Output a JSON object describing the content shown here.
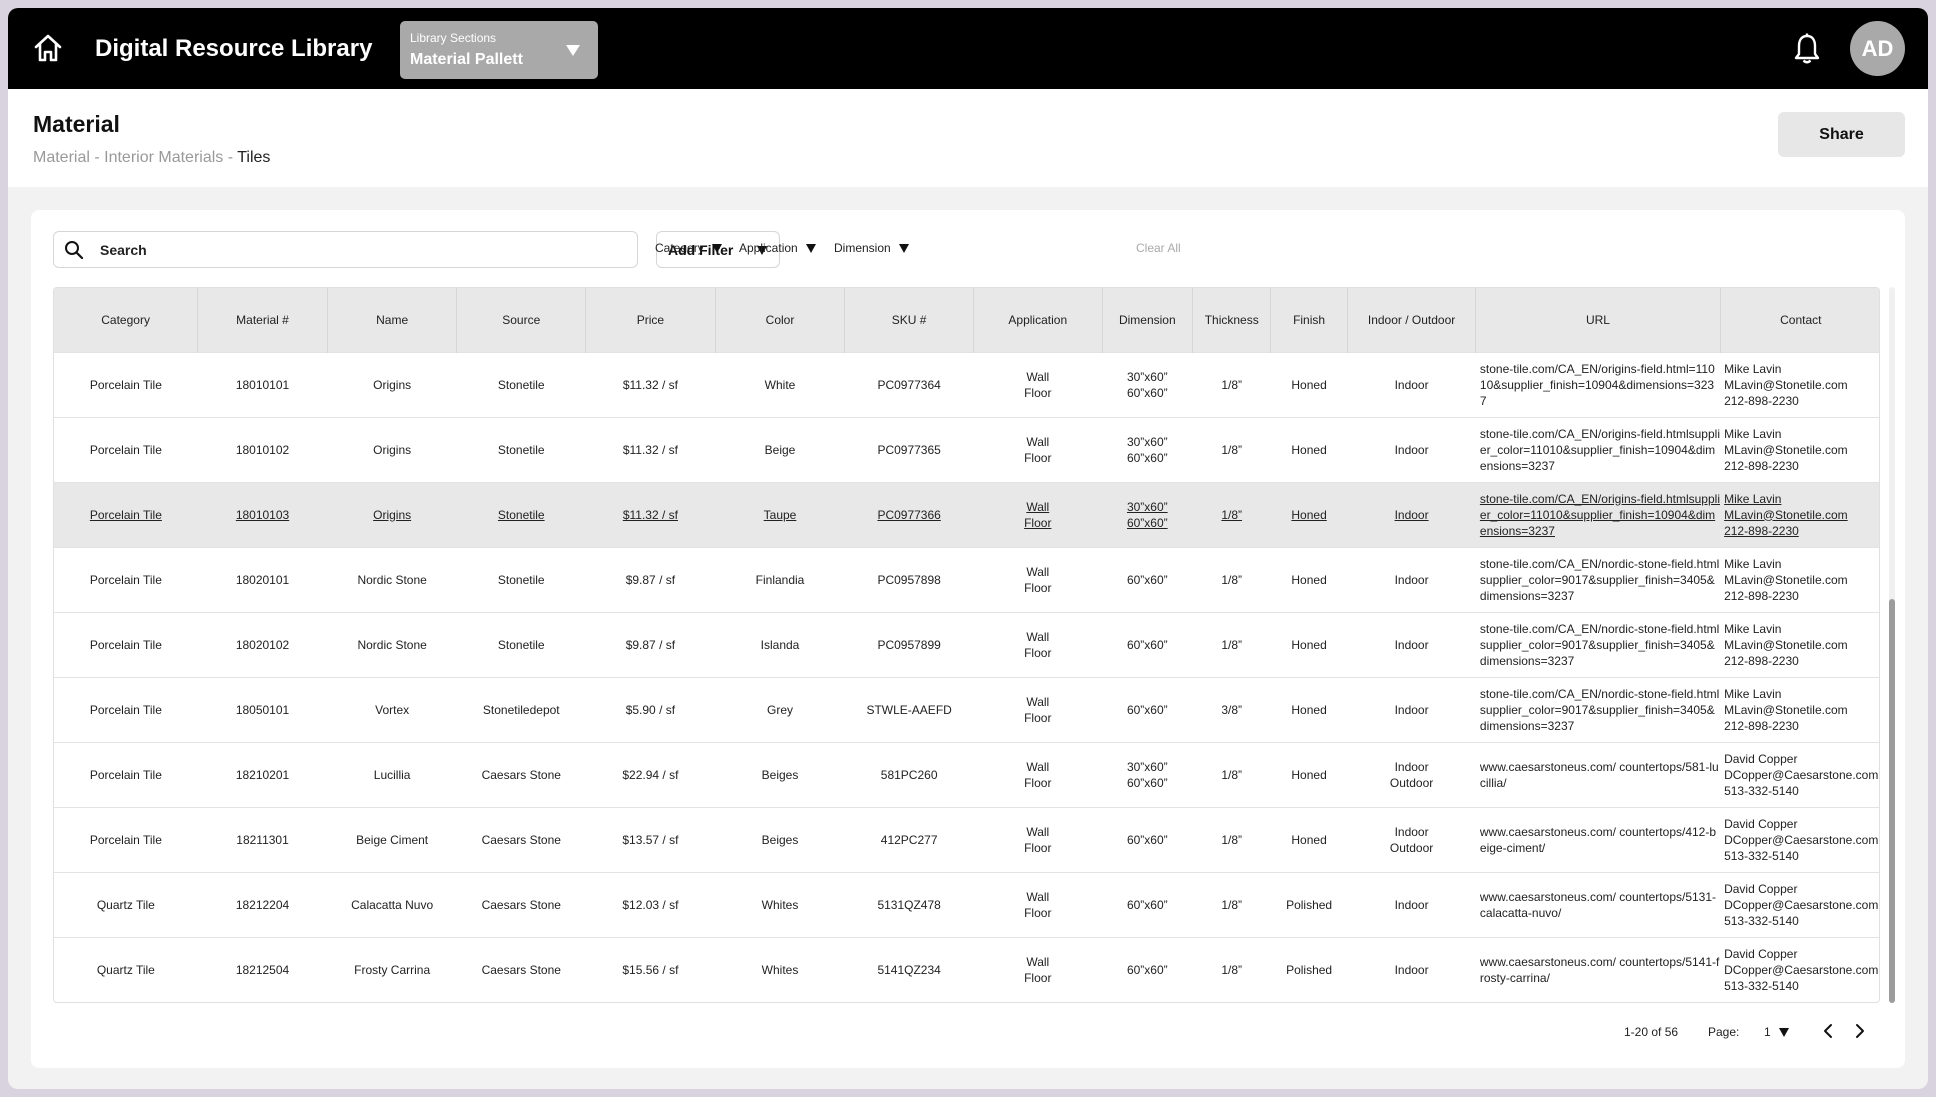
{
  "header": {
    "app_title": "Digital Resource Library",
    "section_label": "Library Sections",
    "section_value": "Material Pallett",
    "avatar_initials": "AD"
  },
  "page": {
    "title": "Material",
    "breadcrumb": [
      "Material",
      "Interior Materials",
      "Tiles"
    ],
    "breadcrumb_sep": " - ",
    "share_label": "Share"
  },
  "toolbar": {
    "search_placeholder": "Search",
    "add_filter_label": "Add Filter",
    "filters": [
      "Category",
      "Application",
      "Dimension"
    ],
    "clear_all_label": "Clear All"
  },
  "table": {
    "columns": [
      "Category",
      "Material #",
      "Name",
      "Source",
      "Price",
      "Color",
      "SKU #",
      "Application",
      "Dimension",
      "Thickness",
      "Finish",
      "Indoor / Outdoor",
      "URL",
      "Contact"
    ],
    "rows": [
      {
        "category": "Porcelain Tile",
        "material": "18010101",
        "name": "Origins",
        "source": "Stonetile",
        "price": "$11.32 / sf",
        "color": "White",
        "sku": "PC0977364",
        "application": [
          "Wall",
          "Floor"
        ],
        "dimension": [
          "30”x60”",
          "60”x60”"
        ],
        "thickness": "1/8”",
        "finish": "Honed",
        "inout": [
          "Indoor"
        ],
        "url": "stone-tile.com/CA_EN/origins-field.html=11010&supplier_finish=10904&dimensions=3237",
        "contact": [
          "Mike Lavin",
          "MLavin@Stonetile.com",
          "212-898-2230"
        ]
      },
      {
        "category": "Porcelain Tile",
        "material": "18010102",
        "name": "Origins",
        "source": "Stonetile",
        "price": "$11.32 / sf",
        "color": "Beige",
        "sku": "PC0977365",
        "application": [
          "Wall",
          "Floor"
        ],
        "dimension": [
          "30”x60”",
          "60”x60”"
        ],
        "thickness": "1/8”",
        "finish": "Honed",
        "inout": [
          "Indoor"
        ],
        "url": "stone-tile.com/CA_EN/origins-field.htmlsupplier_color=11010&supplier_finish=10904&dimensions=3237",
        "contact": [
          "Mike Lavin",
          "MLavin@Stonetile.com",
          "212-898-2230"
        ]
      },
      {
        "category": "Porcelain Tile",
        "material": "18010103",
        "name": "Origins",
        "source": "Stonetile",
        "price": "$11.32 / sf",
        "color": "Taupe",
        "sku": "PC0977366",
        "application": [
          "Wall",
          "Floor"
        ],
        "dimension": [
          "30”x60”",
          "60”x60”"
        ],
        "thickness": "1/8”",
        "finish": "Honed",
        "inout": [
          "Indoor"
        ],
        "url": "stone-tile.com/CA_EN/origins-field.htmlsupplier_color=11010&supplier_finish=10904&dimensions=3237",
        "contact": [
          "Mike Lavin",
          "MLavin@Stonetile.com",
          "212-898-2230"
        ]
      },
      {
        "category": "Porcelain Tile",
        "material": "18020101",
        "name": "Nordic Stone",
        "source": "Stonetile",
        "price": "$9.87 / sf",
        "color": "Finlandia",
        "sku": "PC0957898",
        "application": [
          "Wall",
          "Floor"
        ],
        "dimension": [
          "60”x60”"
        ],
        "thickness": "1/8”",
        "finish": "Honed",
        "inout": [
          "Indoor"
        ],
        "url": "stone-tile.com/CA_EN/nordic-stone-field.htmlsupplier_color=9017&supplier_finish=3405&dimensions=3237",
        "contact": [
          "Mike Lavin",
          "MLavin@Stonetile.com",
          "212-898-2230"
        ]
      },
      {
        "category": "Porcelain Tile",
        "material": "18020102",
        "name": "Nordic Stone",
        "source": "Stonetile",
        "price": "$9.87 / sf",
        "color": "Islanda",
        "sku": "PC0957899",
        "application": [
          "Wall",
          "Floor"
        ],
        "dimension": [
          "60”x60”"
        ],
        "thickness": "1/8”",
        "finish": "Honed",
        "inout": [
          "Indoor"
        ],
        "url": "stone-tile.com/CA_EN/nordic-stone-field.htmlsupplier_color=9017&supplier_finish=3405&dimensions=3237",
        "contact": [
          "Mike Lavin",
          "MLavin@Stonetile.com",
          "212-898-2230"
        ]
      },
      {
        "category": "Porcelain Tile",
        "material": "18050101",
        "name": "Vortex",
        "source": "Stonetiledepot",
        "price": "$5.90 / sf",
        "color": "Grey",
        "sku": "STWLE-AAEFD",
        "application": [
          "Wall",
          "Floor"
        ],
        "dimension": [
          "60”x60”"
        ],
        "thickness": "3/8”",
        "finish": "Honed",
        "inout": [
          "Indoor"
        ],
        "url": "stone-tile.com/CA_EN/nordic-stone-field.htmlsupplier_color=9017&supplier_finish=3405&dimensions=3237",
        "contact": [
          "Mike Lavin",
          "MLavin@Stonetile.com",
          "212-898-2230"
        ]
      },
      {
        "category": "Porcelain Tile",
        "material": "18210201",
        "name": "Lucillia",
        "source": "Caesars Stone",
        "price": "$22.94 / sf",
        "color": "Beiges",
        "sku": "581PC260",
        "application": [
          "Wall",
          "Floor"
        ],
        "dimension": [
          "30”x60”",
          "60”x60”"
        ],
        "thickness": "1/8”",
        "finish": "Honed",
        "inout": [
          "Indoor",
          "Outdoor"
        ],
        "url": "www.caesarstoneus.com/ countertops/581-lucillia/",
        "contact": [
          "David Copper",
          "DCopper@Caesarstone.com",
          "513-332-5140"
        ]
      },
      {
        "category": "Porcelain Tile",
        "material": "18211301",
        "name": "Beige Ciment",
        "source": "Caesars Stone",
        "price": "$13.57 / sf",
        "color": "Beiges",
        "sku": "412PC277",
        "application": [
          "Wall",
          "Floor"
        ],
        "dimension": [
          "60”x60”"
        ],
        "thickness": "1/8”",
        "finish": "Honed",
        "inout": [
          "Indoor",
          "Outdoor"
        ],
        "url": "www.caesarstoneus.com/ countertops/412-beige-ciment/",
        "contact": [
          "David Copper",
          "DCopper@Caesarstone.com",
          "513-332-5140"
        ]
      },
      {
        "category": "Quartz Tile",
        "material": "18212204",
        "name": "Calacatta Nuvo",
        "source": "Caesars Stone",
        "price": "$12.03 / sf",
        "color": "Whites",
        "sku": "5131QZ478",
        "application": [
          "Wall",
          "Floor"
        ],
        "dimension": [
          "60”x60”"
        ],
        "thickness": "1/8”",
        "finish": "Polished",
        "inout": [
          "Indoor"
        ],
        "url": "www.caesarstoneus.com/ countertops/5131-calacatta-nuvo/",
        "contact": [
          "David Copper",
          "DCopper@Caesarstone.com",
          "513-332-5140"
        ]
      },
      {
        "category": "Quartz Tile",
        "material": "18212504",
        "name": "Frosty Carrina",
        "source": "Caesars Stone",
        "price": "$15.56 / sf",
        "color": "Whites",
        "sku": "5141QZ234",
        "application": [
          "Wall",
          "Floor"
        ],
        "dimension": [
          "60”x60”"
        ],
        "thickness": "1/8”",
        "finish": "Polished",
        "inout": [
          "Indoor"
        ],
        "url": "www.caesarstoneus.com/ countertops/5141-frosty-carrina/",
        "contact": [
          "David Copper",
          "DCopper@Caesarstone.com",
          "513-332-5140"
        ]
      }
    ],
    "highlighted_row": 2
  },
  "pagination": {
    "range": "1-20 of 56",
    "page_label": "Page:",
    "page_value": "1"
  }
}
